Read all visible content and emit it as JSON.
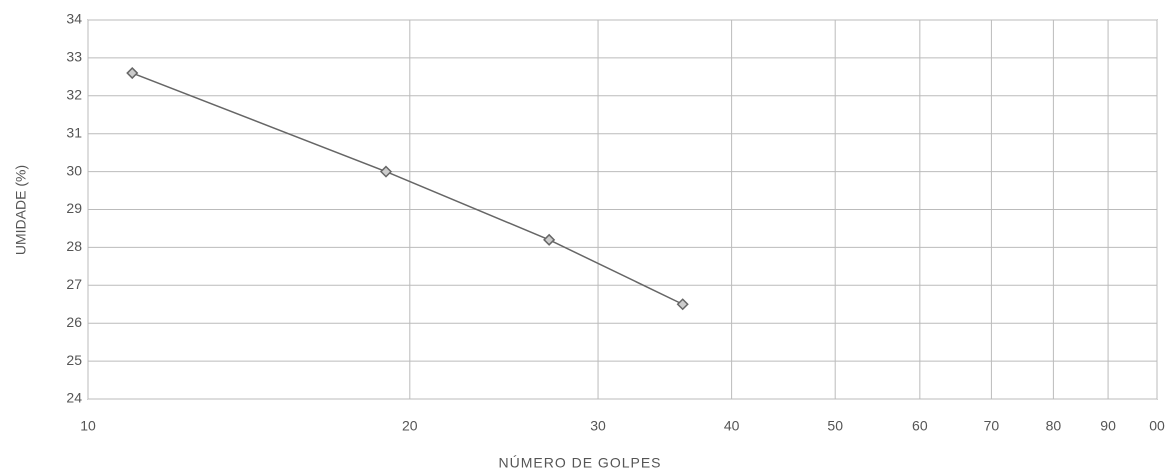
{
  "chart_data": {
    "type": "line",
    "x_label": "NÚMERO DE GOLPES",
    "y_label": "UMIDADE (%)",
    "x": [
      11,
      19,
      27,
      36
    ],
    "series": [
      {
        "color": "#666666",
        "values": [
          32.6,
          30.0,
          28.2,
          26.5
        ]
      }
    ],
    "xscale": "log",
    "xlim": [
      10,
      100
    ],
    "xticks": [
      10,
      20,
      30,
      40,
      50,
      60,
      70,
      80,
      90,
      {
        "value": 100,
        "label": "00"
      }
    ],
    "ylim": [
      24,
      34
    ],
    "yticks": [
      24,
      25,
      26,
      27,
      28,
      29,
      30,
      31,
      32,
      33,
      34
    ],
    "grid": true
  }
}
